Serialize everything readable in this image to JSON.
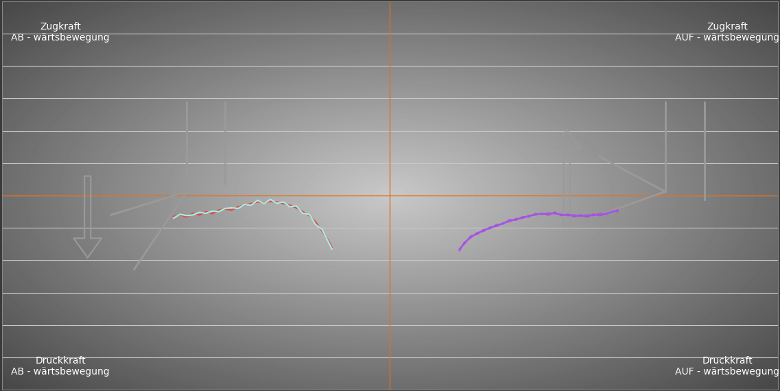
{
  "chart_data": {
    "type": "line",
    "annotations": [
      "Zugkraft\nAB - wärtsbewegung",
      "Zugkraft\nAUF - wärtsbewegung",
      "Druckkraft\nAB - wärtsbewegung",
      "Druckkraft\nAUF - wärtsbewegung"
    ],
    "xlim": [
      -12,
      12
    ],
    "xticks": [
      0
    ],
    "ylim": [
      -6,
      6
    ],
    "yticks": [
      -5,
      -4,
      -3,
      -2,
      -1,
      0,
      1,
      2,
      3,
      4,
      5
    ],
    "grid": true,
    "tick_labels": false,
    "series": [
      {
        "color": "#e04848",
        "x": [
          -6.7,
          -6.5,
          -6.3,
          -6.1,
          -5.9,
          -5.7,
          -5.5,
          -5.3,
          -5.1,
          -4.9,
          -4.7,
          -4.5,
          -4.3,
          -4.1,
          -3.9,
          -3.7,
          -3.5,
          -3.3,
          -3.1,
          -2.9,
          -2.7,
          -2.5,
          -2.3,
          -2.1,
          -1.9,
          -1.8
        ],
        "values": [
          -0.65,
          -0.6,
          -0.66,
          -0.55,
          -0.6,
          -0.5,
          -0.56,
          -0.45,
          -0.42,
          -0.45,
          -0.35,
          -0.3,
          -0.25,
          -0.2,
          -0.22,
          -0.18,
          -0.2,
          -0.25,
          -0.3,
          -0.38,
          -0.5,
          -0.62,
          -0.82,
          -1.1,
          -1.4,
          -1.6
        ]
      },
      {
        "color": "#a8ece2",
        "x": [
          -6.7,
          -6.5,
          -6.3,
          -6.1,
          -5.9,
          -5.7,
          -5.5,
          -5.3,
          -5.1,
          -4.9,
          -4.7,
          -4.5,
          -4.3,
          -4.1,
          -3.9,
          -3.7,
          -3.5,
          -3.3,
          -3.1,
          -2.9,
          -2.7,
          -2.5,
          -2.3,
          -2.1,
          -1.9,
          -1.8
        ],
        "values": [
          -0.7,
          -0.58,
          -0.62,
          -0.6,
          -0.52,
          -0.55,
          -0.48,
          -0.5,
          -0.4,
          -0.38,
          -0.4,
          -0.28,
          -0.3,
          -0.15,
          -0.25,
          -0.12,
          -0.24,
          -0.2,
          -0.35,
          -0.32,
          -0.55,
          -0.58,
          -0.9,
          -1.05,
          -1.45,
          -1.65
        ]
      },
      {
        "color": "#c040e0",
        "x": [
          2.15,
          2.3,
          2.5,
          2.7,
          2.9,
          3.1,
          3.3,
          3.5,
          3.7,
          3.9,
          4.1,
          4.3,
          4.5,
          4.7,
          4.9,
          5.1,
          5.3,
          5.5,
          5.7,
          5.9,
          6.1,
          6.3,
          6.5,
          6.7,
          6.9,
          7.05
        ],
        "values": [
          -1.7,
          -1.45,
          -1.3,
          -1.15,
          -1.1,
          -0.98,
          -0.95,
          -0.85,
          -0.8,
          -0.72,
          -0.7,
          -0.62,
          -0.6,
          -0.55,
          -0.6,
          -0.52,
          -0.62,
          -0.58,
          -0.65,
          -0.6,
          -0.66,
          -0.58,
          -0.62,
          -0.55,
          -0.5,
          -0.45
        ]
      },
      {
        "color": "#9a5ae8",
        "x": [
          2.15,
          2.3,
          2.5,
          2.7,
          2.9,
          3.1,
          3.3,
          3.5,
          3.7,
          3.9,
          4.1,
          4.3,
          4.5,
          4.7,
          4.9,
          5.1,
          5.3,
          5.5,
          5.7,
          5.9,
          6.1,
          6.3,
          6.5,
          6.7,
          6.9,
          7.05
        ],
        "values": [
          -1.65,
          -1.5,
          -1.25,
          -1.2,
          -1.05,
          -1.02,
          -0.9,
          -0.88,
          -0.75,
          -0.76,
          -0.66,
          -0.66,
          -0.56,
          -0.58,
          -0.54,
          -0.56,
          -0.58,
          -0.62,
          -0.6,
          -0.64,
          -0.6,
          -0.62,
          -0.56,
          -0.58,
          -0.48,
          -0.5
        ]
      }
    ]
  }
}
